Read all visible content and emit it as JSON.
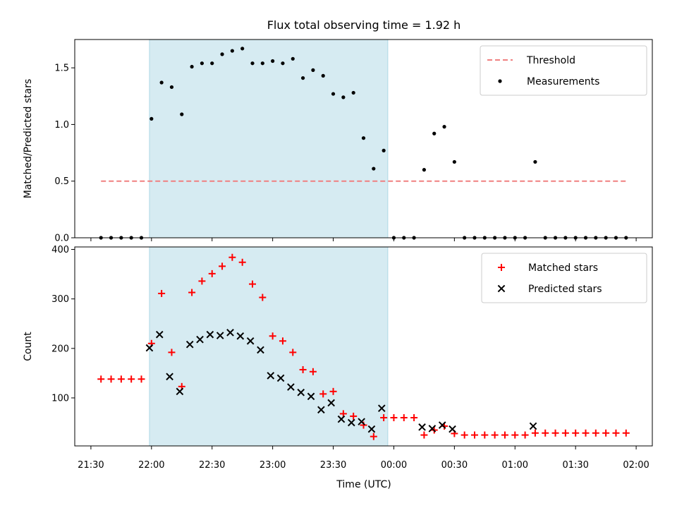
{
  "chart_data": {
    "type": "scatter",
    "title": "Flux total observing time = 1.92 h",
    "xlabel": "Time (UTC)",
    "x_range": [
      "21:22",
      "02:08"
    ],
    "x_ticks": [
      "21:30",
      "22:00",
      "22:30",
      "23:00",
      "23:30",
      "00:00",
      "00:30",
      "01:00",
      "01:30",
      "02:00"
    ],
    "highlight_span": [
      "21:59",
      "23:57"
    ],
    "highlight_color": "#add8e6",
    "panels": [
      {
        "ylabel": "Matched/Predicted stars",
        "ylim": [
          0,
          1.75
        ],
        "y_ticks": [
          "0.0",
          "0.5",
          "1.0",
          "1.5"
        ],
        "legend_position": "upper right",
        "threshold": {
          "name": "Threshold",
          "value": 0.5,
          "x_start": "21:35",
          "x_end": "01:55",
          "color": "#f08080"
        },
        "series": [
          {
            "name": "Measurements",
            "marker": "dot",
            "color": "#000000",
            "points": [
              [
                "21:35",
                0
              ],
              [
                "21:40",
                0
              ],
              [
                "21:45",
                0
              ],
              [
                "21:50",
                0
              ],
              [
                "21:55",
                0
              ],
              [
                "22:00",
                1.05
              ],
              [
                "22:05",
                1.37
              ],
              [
                "22:10",
                1.33
              ],
              [
                "22:15",
                1.09
              ],
              [
                "22:20",
                1.51
              ],
              [
                "22:25",
                1.54
              ],
              [
                "22:30",
                1.54
              ],
              [
                "22:35",
                1.62
              ],
              [
                "22:40",
                1.65
              ],
              [
                "22:45",
                1.67
              ],
              [
                "22:50",
                1.54
              ],
              [
                "22:55",
                1.54
              ],
              [
                "23:00",
                1.56
              ],
              [
                "23:05",
                1.54
              ],
              [
                "23:10",
                1.58
              ],
              [
                "23:15",
                1.41
              ],
              [
                "23:20",
                1.48
              ],
              [
                "23:25",
                1.43
              ],
              [
                "23:30",
                1.27
              ],
              [
                "23:35",
                1.24
              ],
              [
                "23:40",
                1.28
              ],
              [
                "23:45",
                0.88
              ],
              [
                "23:50",
                0.61
              ],
              [
                "23:55",
                0.77
              ],
              [
                "00:00",
                0
              ],
              [
                "00:05",
                0
              ],
              [
                "00:10",
                0
              ],
              [
                "00:15",
                0.6
              ],
              [
                "00:20",
                0.92
              ],
              [
                "00:25",
                0.98
              ],
              [
                "00:30",
                0.67
              ],
              [
                "00:35",
                0
              ],
              [
                "00:40",
                0
              ],
              [
                "00:45",
                0
              ],
              [
                "00:50",
                0
              ],
              [
                "00:55",
                0
              ],
              [
                "01:00",
                0
              ],
              [
                "01:05",
                0
              ],
              [
                "01:10",
                0.67
              ],
              [
                "01:15",
                0
              ],
              [
                "01:20",
                0
              ],
              [
                "01:25",
                0
              ],
              [
                "01:30",
                0
              ],
              [
                "01:35",
                0
              ],
              [
                "01:40",
                0
              ],
              [
                "01:45",
                0
              ],
              [
                "01:50",
                0
              ],
              [
                "01:55",
                0
              ]
            ]
          }
        ]
      },
      {
        "ylabel": "Count",
        "ylim": [
          3,
          405
        ],
        "y_ticks": [
          "100",
          "200",
          "300",
          "400"
        ],
        "legend_position": "upper right",
        "series": [
          {
            "name": "Matched stars",
            "marker": "plus",
            "color": "#ff0000",
            "points": [
              [
                "21:35",
                138
              ],
              [
                "21:40",
                138
              ],
              [
                "21:45",
                138
              ],
              [
                "21:50",
                138
              ],
              [
                "21:55",
                138
              ],
              [
                "22:00",
                210
              ],
              [
                "22:05",
                311
              ],
              [
                "22:10",
                192
              ],
              [
                "22:15",
                123
              ],
              [
                "22:20",
                313
              ],
              [
                "22:25",
                336
              ],
              [
                "22:30",
                351
              ],
              [
                "22:35",
                366
              ],
              [
                "22:40",
                384
              ],
              [
                "22:45",
                374
              ],
              [
                "22:50",
                330
              ],
              [
                "22:55",
                303
              ],
              [
                "23:00",
                225
              ],
              [
                "23:05",
                215
              ],
              [
                "23:10",
                192
              ],
              [
                "23:15",
                157
              ],
              [
                "23:20",
                153
              ],
              [
                "23:25",
                108
              ],
              [
                "23:30",
                113
              ],
              [
                "23:35",
                68
              ],
              [
                "23:40",
                63
              ],
              [
                "23:45",
                45
              ],
              [
                "23:50",
                22
              ],
              [
                "23:55",
                60
              ],
              [
                "00:00",
                60
              ],
              [
                "00:05",
                60
              ],
              [
                "00:10",
                60
              ],
              [
                "00:15",
                25
              ],
              [
                "00:20",
                35
              ],
              [
                "00:25",
                43
              ],
              [
                "00:30",
                28
              ],
              [
                "00:35",
                25
              ],
              [
                "00:40",
                25
              ],
              [
                "00:45",
                25
              ],
              [
                "00:50",
                25
              ],
              [
                "00:55",
                25
              ],
              [
                "01:00",
                25
              ],
              [
                "01:05",
                25
              ],
              [
                "01:10",
                29
              ],
              [
                "01:15",
                29
              ],
              [
                "01:20",
                29
              ],
              [
                "01:25",
                29
              ],
              [
                "01:30",
                29
              ],
              [
                "01:35",
                29
              ],
              [
                "01:40",
                29
              ],
              [
                "01:45",
                29
              ],
              [
                "01:50",
                29
              ],
              [
                "01:55",
                29
              ]
            ]
          },
          {
            "name": "Predicted stars",
            "marker": "x",
            "color": "#000000",
            "points": [
              [
                "21:59",
                201
              ],
              [
                "22:04",
                228
              ],
              [
                "22:09",
                143
              ],
              [
                "22:14",
                113
              ],
              [
                "22:19",
                208
              ],
              [
                "22:24",
                218
              ],
              [
                "22:29",
                228
              ],
              [
                "22:34",
                226
              ],
              [
                "22:39",
                232
              ],
              [
                "22:44",
                225
              ],
              [
                "22:49",
                215
              ],
              [
                "22:54",
                197
              ],
              [
                "22:59",
                145
              ],
              [
                "23:04",
                140
              ],
              [
                "23:09",
                122
              ],
              [
                "23:14",
                111
              ],
              [
                "23:19",
                103
              ],
              [
                "23:24",
                76
              ],
              [
                "23:29",
                90
              ],
              [
                "23:34",
                57
              ],
              [
                "23:39",
                50
              ],
              [
                "23:44",
                52
              ],
              [
                "23:49",
                37
              ],
              [
                "23:54",
                79
              ],
              [
                "00:14",
                41
              ],
              [
                "00:19",
                38
              ],
              [
                "00:24",
                45
              ],
              [
                "00:29",
                37
              ],
              [
                "01:09",
                43
              ]
            ]
          }
        ]
      }
    ]
  }
}
